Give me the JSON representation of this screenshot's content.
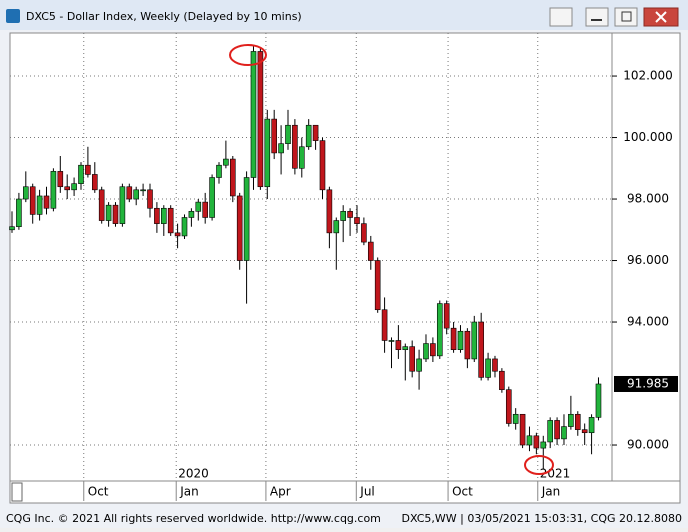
{
  "window": {
    "title": "DXC5 - Dollar Index, Weekly (Delayed by 10 mins)"
  },
  "chart_data": {
    "type": "candlestick",
    "up_color": "#22b43c",
    "down_color": "#c0161c",
    "grid": true,
    "ylim": [
      88.83,
      103.4
    ],
    "yticks": [
      {
        "value": 90,
        "label": "90.000"
      },
      {
        "value": 94,
        "label": "94.000"
      },
      {
        "value": 96,
        "label": "96.000"
      },
      {
        "value": 98,
        "label": "98.000"
      },
      {
        "value": 100,
        "label": "100.000"
      },
      {
        "value": 102,
        "label": "102.000"
      }
    ],
    "xlim": [
      -0.29,
      86.96
    ],
    "xticks": [
      {
        "value": 10.4,
        "label": "Oct"
      },
      {
        "value": 23.8,
        "label": "Jan"
      },
      {
        "value": 36.8,
        "label": "Apr"
      },
      {
        "value": 49.9,
        "label": "Jul"
      },
      {
        "value": 63.2,
        "label": "Oct"
      },
      {
        "value": 76.2,
        "label": "Jan"
      }
    ],
    "year_ticks": [
      {
        "value": 23.8,
        "label": "2020"
      },
      {
        "value": 76.2,
        "label": "2021"
      }
    ],
    "open": [
      97.0,
      97.1,
      98.0,
      98.4,
      97.5,
      98.1,
      97.7,
      98.9,
      98.4,
      98.3,
      98.5,
      99.1,
      98.8,
      98.3,
      97.3,
      97.8,
      97.2,
      98.4,
      98.0,
      98.3,
      98.3,
      97.7,
      97.2,
      97.7,
      96.9,
      96.8,
      97.4,
      97.6,
      97.9,
      97.4,
      98.7,
      99.1,
      99.3,
      98.1,
      96.0,
      98.7,
      102.8,
      98.4,
      100.6,
      99.5,
      99.8,
      100.4,
      99.0,
      99.7,
      100.4,
      99.9,
      98.3,
      96.9,
      97.3,
      97.6,
      97.4,
      97.2,
      96.6,
      96.0,
      94.4,
      93.4,
      93.4,
      93.1,
      93.2,
      92.4,
      92.8,
      93.3,
      92.9,
      94.6,
      93.8,
      93.1,
      93.7,
      92.8,
      94.0,
      92.2,
      92.8,
      92.4,
      91.8,
      90.7,
      91.0,
      90.0,
      90.3,
      89.9,
      90.1,
      90.8,
      90.2,
      90.6,
      91.0,
      90.5,
      90.4,
      90.9
    ],
    "high": [
      97.6,
      98.2,
      98.9,
      98.5,
      98.3,
      98.4,
      99.0,
      99.4,
      98.8,
      98.7,
      99.2,
      99.7,
      99.2,
      98.4,
      97.9,
      97.9,
      98.5,
      98.5,
      98.4,
      98.5,
      98.5,
      97.9,
      97.8,
      97.8,
      97.2,
      97.5,
      97.7,
      98.0,
      98.2,
      98.8,
      99.2,
      99.9,
      99.4,
      98.2,
      98.9,
      103.0,
      102.9,
      100.9,
      100.9,
      100.4,
      100.9,
      100.6,
      100.0,
      100.6,
      100.4,
      100.0,
      98.4,
      97.4,
      97.8,
      97.7,
      97.8,
      97.4,
      96.8,
      96.1,
      94.8,
      93.5,
      93.9,
      93.3,
      93.4,
      93.1,
      93.6,
      93.5,
      94.7,
      94.7,
      94.0,
      93.9,
      93.8,
      94.2,
      94.3,
      93.0,
      92.9,
      92.5,
      91.9,
      91.2,
      91.0,
      90.6,
      90.4,
      90.3,
      90.9,
      90.9,
      91.0,
      91.6,
      91.1,
      90.7,
      91.0,
      92.2
    ],
    "low": [
      96.9,
      97.0,
      97.9,
      97.2,
      97.3,
      97.5,
      97.6,
      98.2,
      98.0,
      98.1,
      98.3,
      98.7,
      98.2,
      97.2,
      97.1,
      97.1,
      97.1,
      97.9,
      97.8,
      98.1,
      97.4,
      96.9,
      96.8,
      96.8,
      96.4,
      96.7,
      97.1,
      97.3,
      97.2,
      97.3,
      98.5,
      99.0,
      97.9,
      95.7,
      94.6,
      98.3,
      98.3,
      98.0,
      99.3,
      98.8,
      99.6,
      98.8,
      98.7,
      99.6,
      99.6,
      98.0,
      96.4,
      95.7,
      96.6,
      96.8,
      96.9,
      96.5,
      95.7,
      94.3,
      93.0,
      92.5,
      92.8,
      92.1,
      92.2,
      91.8,
      92.7,
      92.7,
      92.8,
      93.6,
      93.0,
      93.0,
      92.5,
      92.7,
      92.1,
      92.1,
      92.2,
      91.7,
      90.6,
      90.5,
      89.9,
      89.8,
      89.7,
      89.2,
      89.9,
      90.0,
      90.0,
      90.5,
      90.3,
      90.0,
      89.7,
      90.8
    ],
    "close": [
      97.1,
      98.0,
      98.4,
      97.5,
      98.1,
      97.7,
      98.9,
      98.4,
      98.3,
      98.5,
      99.1,
      98.8,
      98.3,
      97.3,
      97.8,
      97.2,
      98.4,
      98.0,
      98.3,
      98.3,
      97.7,
      97.2,
      97.7,
      96.9,
      96.8,
      97.4,
      97.6,
      97.9,
      97.4,
      98.7,
      99.1,
      99.3,
      98.1,
      96.0,
      98.7,
      102.8,
      98.4,
      100.6,
      99.5,
      99.8,
      100.4,
      99.0,
      99.7,
      100.4,
      99.9,
      98.3,
      96.9,
      97.3,
      97.6,
      97.4,
      97.2,
      96.6,
      96.0,
      94.4,
      93.4,
      93.4,
      93.1,
      93.2,
      92.4,
      92.8,
      93.3,
      92.9,
      94.6,
      93.8,
      93.1,
      93.7,
      92.8,
      94.0,
      92.2,
      92.8,
      92.4,
      91.8,
      90.7,
      91.0,
      90.0,
      90.3,
      89.9,
      90.1,
      90.8,
      90.2,
      90.6,
      91.0,
      90.5,
      90.4,
      90.9,
      91.985
    ]
  },
  "footer": {
    "left": "CQG Inc. © 2021 All rights reserved worldwide. http://www.cqg.com",
    "right": "DXC5,WW | 03/05/2021 15:03:31, CQG 20.12.8080"
  }
}
